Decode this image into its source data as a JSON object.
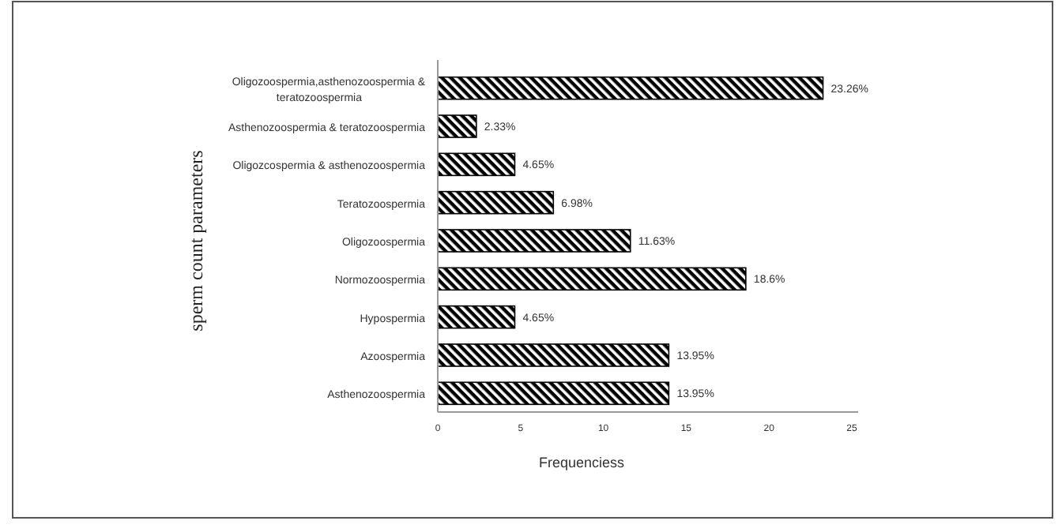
{
  "chart_data": {
    "type": "bar",
    "orientation": "horizontal",
    "xlabel": "Frequenciess",
    "ylabel": "sperm count parameters",
    "categories": [
      "Oligozoospermia,asthenozoospermia & teratozoospermia",
      "Asthenozoospermia & teratozoospermia",
      "Oligozcospermia & asthenozoospermia",
      "Teratozoospermia",
      "Oligozoospermia",
      "Normozoospermia",
      "Hypospermia",
      "Azoospermia",
      "Asthenozoospermia"
    ],
    "values": [
      23.26,
      2.33,
      4.65,
      6.98,
      11.63,
      18.6,
      4.65,
      13.95,
      13.95
    ],
    "value_labels": [
      "23.26%",
      "2.33%",
      "4.65%",
      "6.98%",
      "11.63%",
      "18.6%",
      "4.65%",
      "13.95%",
      "13.95%"
    ],
    "color": "#000000",
    "xlim": [
      0,
      25
    ],
    "xticks": [
      0,
      5,
      10,
      15,
      20,
      25
    ],
    "grid": false
  }
}
